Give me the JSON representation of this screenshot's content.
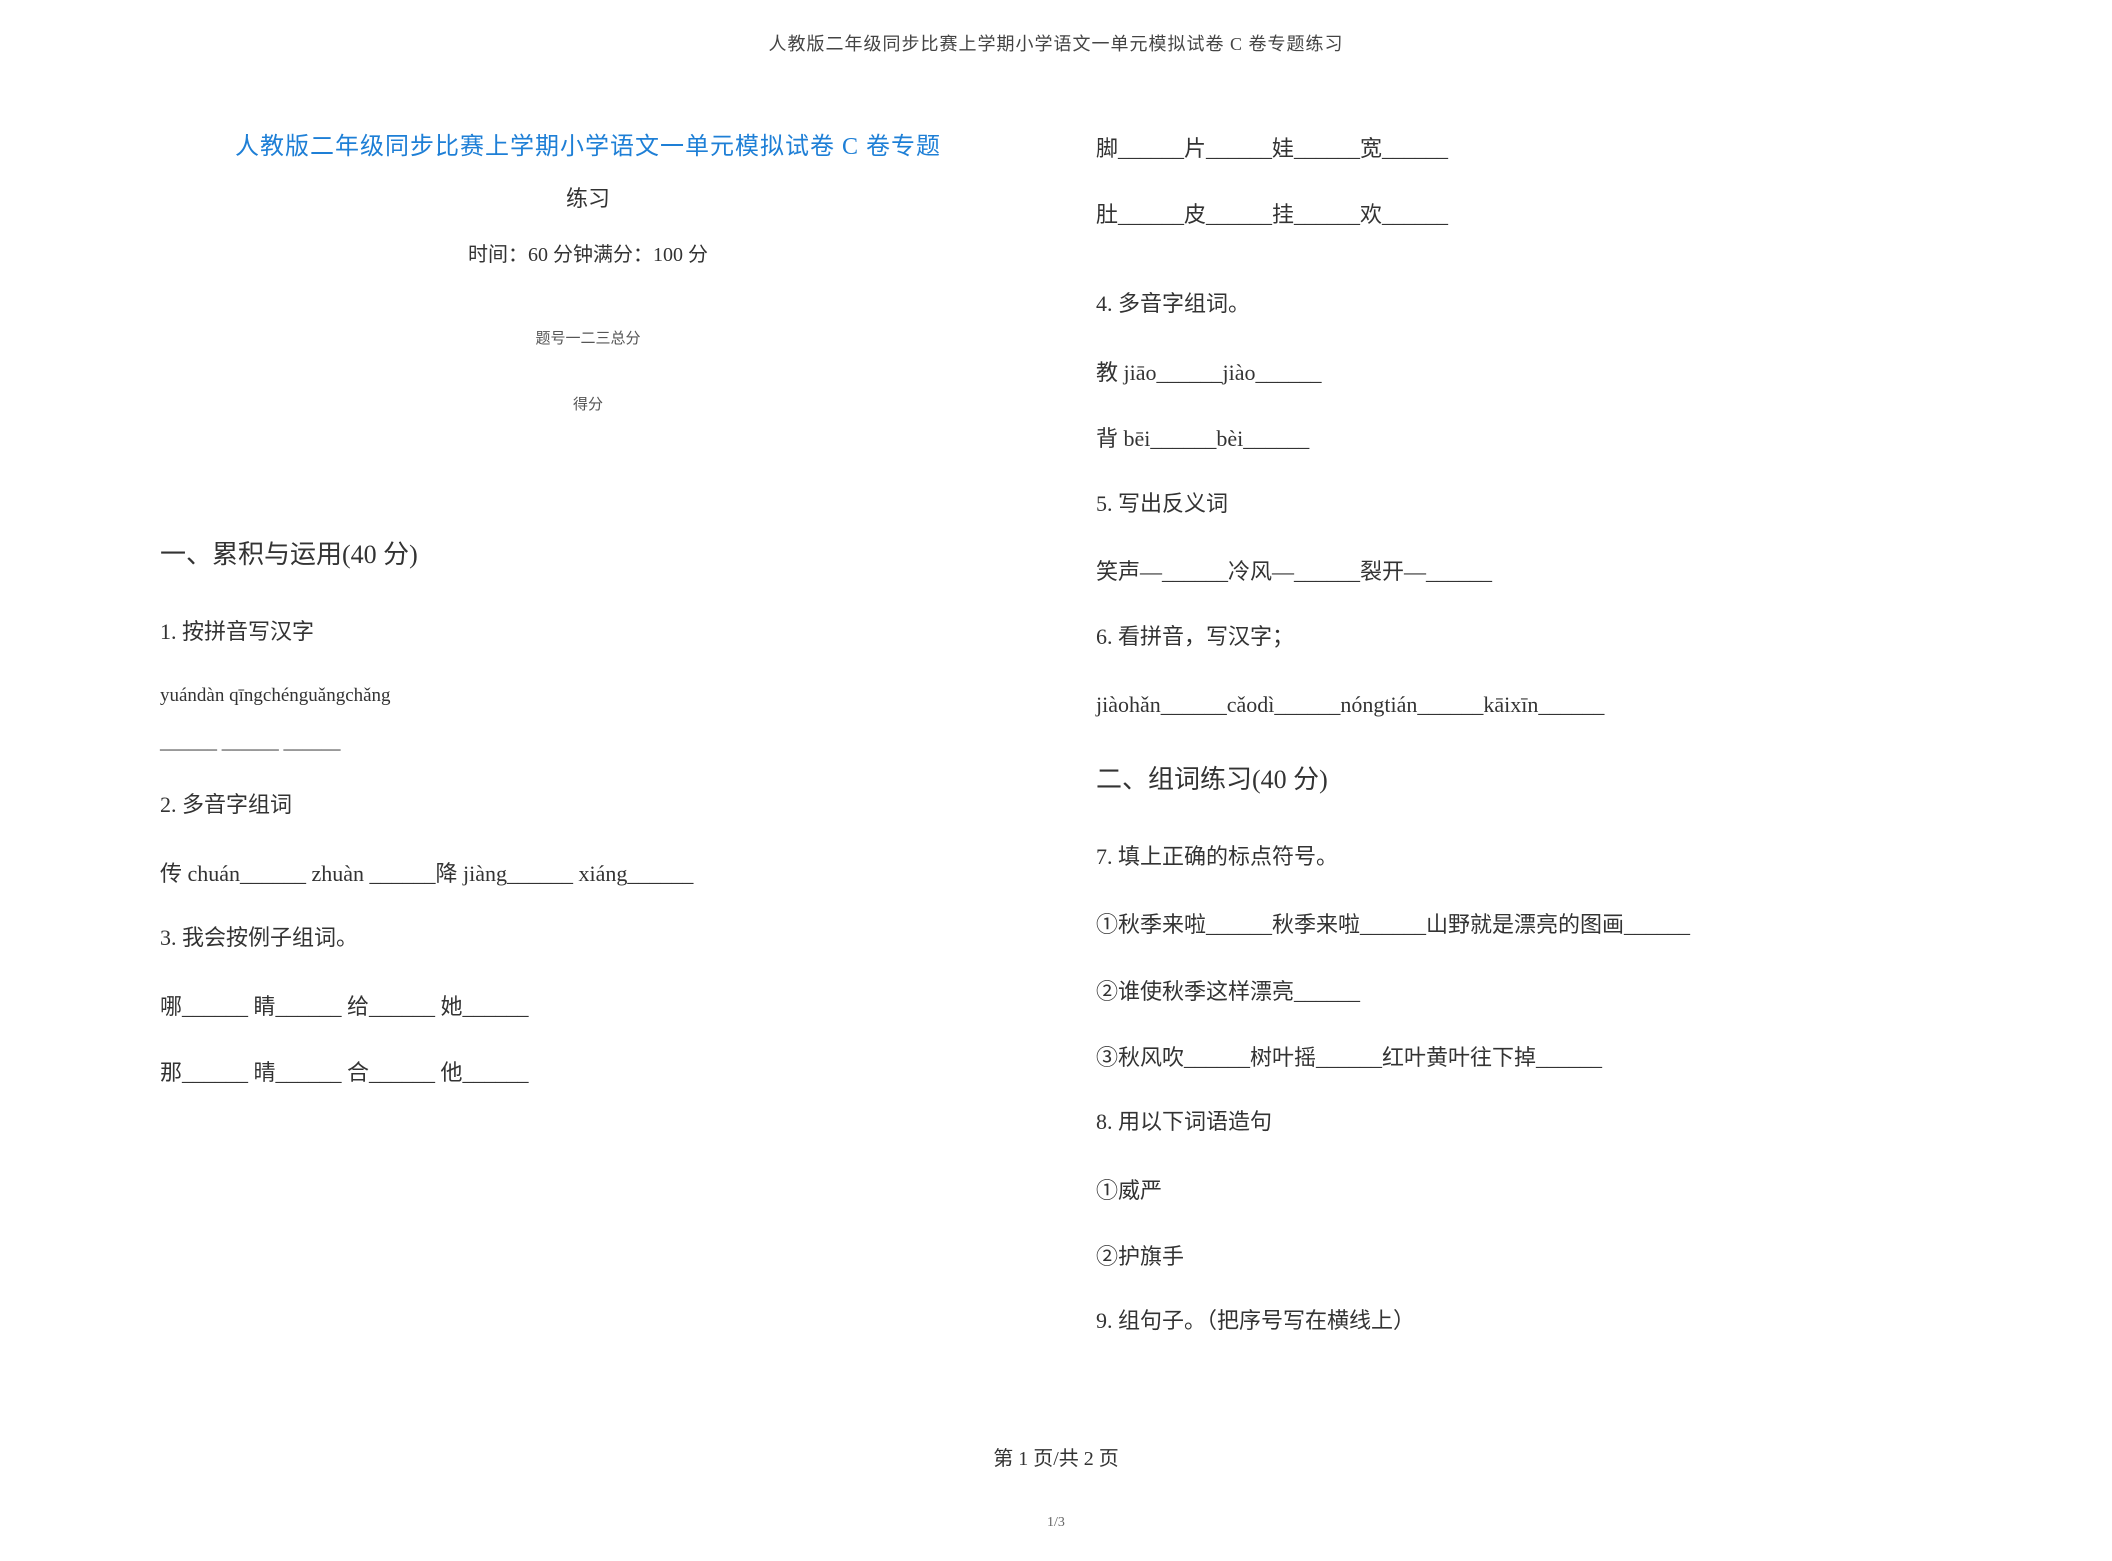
{
  "header": "人教版二年级同步比赛上学期小学语文一单元模拟试卷 C 卷专题练习",
  "title_line1": "人教版二年级同步比赛上学期小学语文一单元模拟试卷 C 卷专题",
  "title_line2": "练习",
  "time_score": "时间：60 分钟满分：100 分",
  "score_header": "题号一二三总分",
  "score_label": "得分",
  "section1": {
    "title": "一、累积与运用(40 分)",
    "q1": {
      "label": "1.   按拼音写汉字",
      "pinyin": "yuándàn          qīngchénguǎngchǎng",
      "blanks": "______              ______           ______"
    },
    "q2": {
      "label": "2.   多音字组词",
      "line1": "传      chuán______                    zhuàn       ______降           jiàng______           xiáng______"
    },
    "q3": {
      "label": "3.   我会按例子组词。",
      "line1": "哪______                      睛______                    给______                    她______",
      "line2": "那______                      晴______                    合______                    他______",
      "line3": "脚______片______娃______宽______",
      "line4": "肚______皮______挂______欢______"
    },
    "q4": {
      "label": "4.   多音字组词。",
      "line1": "教 jiāo______jiào______",
      "line2": "背 bēi______bèi______"
    },
    "q5": {
      "label": "5.   写出反义词",
      "line1": "笑声—______冷风—______裂开—______"
    },
    "q6": {
      "label": "6.   看拼音，写汉字；",
      "line1": "   jiàohǎn______cǎodì______nóngtián______kāixīn______"
    }
  },
  "section2": {
    "title": "二、组词练习(40 分)",
    "q7": {
      "label": "7.   填上正确的标点符号。",
      "line1": "①秋季来啦______秋季来啦______山野就是漂亮的图画______",
      "line2": "②谁使秋季这样漂亮______",
      "line3": "③秋风吹______树叶摇______红叶黄叶往下掉______"
    },
    "q8": {
      "label": "8.   用以下词语造句",
      "line1": "①威严",
      "line2": "②护旗手"
    },
    "q9": {
      "label": "9.   组句子。（把序号写在横线上）"
    }
  },
  "footer": "第 1 页/共 2 页",
  "subfooter": "1/3"
}
